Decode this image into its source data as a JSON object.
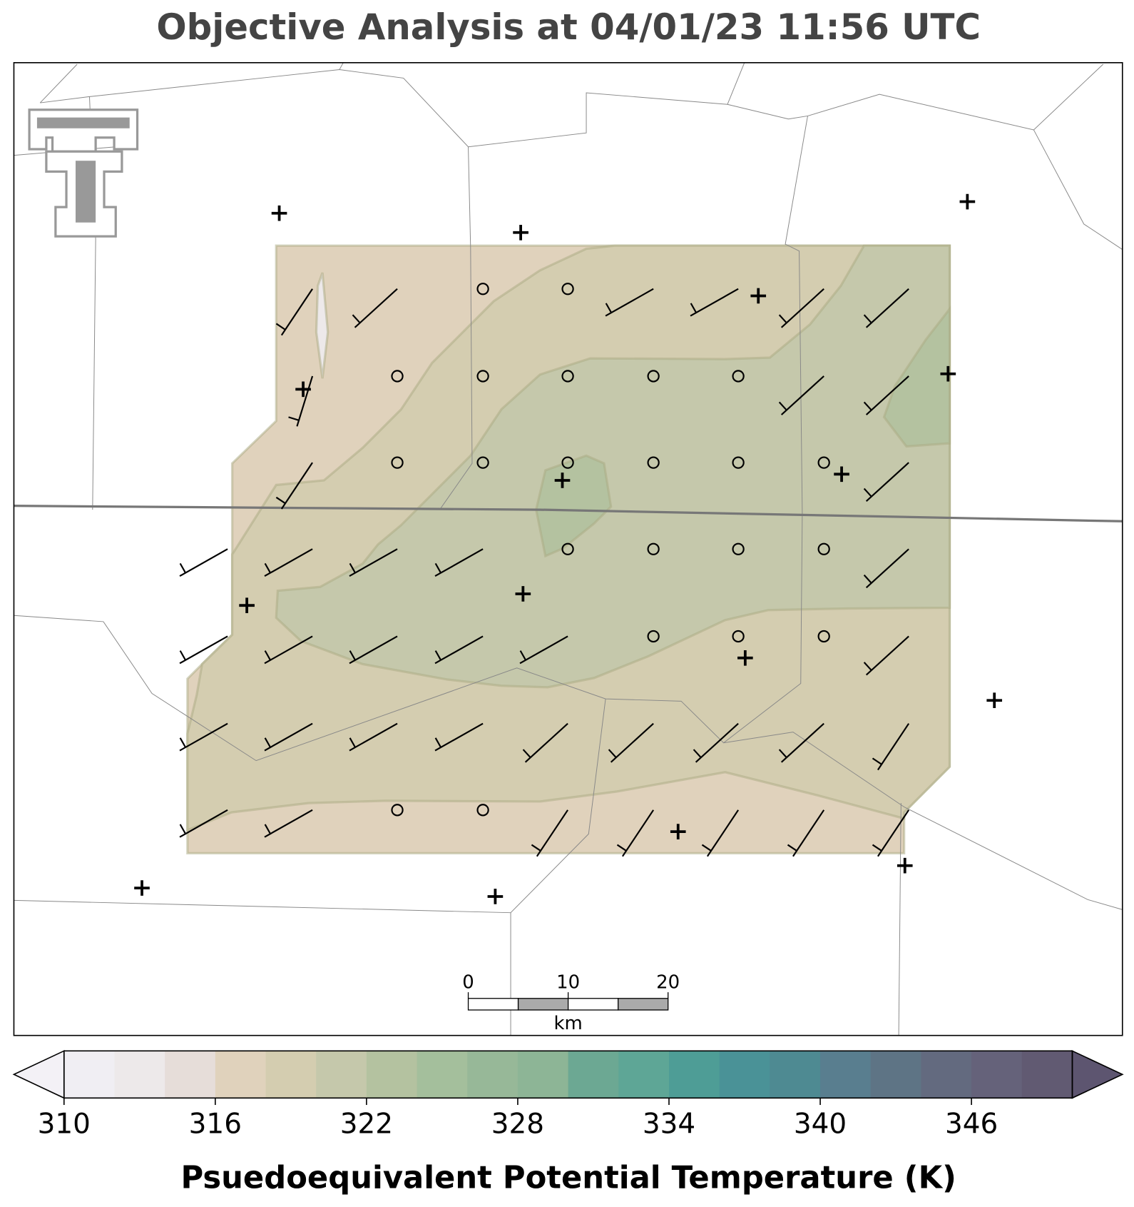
{
  "title": "Objective Analysis at 04/01/23 11:56 UTC",
  "colorbar": {
    "label": "Psuedoequivalent Potential Temperature (K)",
    "clim": [
      310,
      350
    ],
    "ticks": [
      310,
      316,
      322,
      328,
      334,
      340,
      346
    ],
    "extend": "both",
    "under_color": "#f3f1f6",
    "over_color": "#5d5570",
    "colors": [
      "#f0eef3",
      "#ede9ea",
      "#e6ddd9",
      "#e0d2bc",
      "#d4cdb0",
      "#c5c8ab",
      "#b4c2a0",
      "#a4bf9c",
      "#97b898",
      "#8db596",
      "#6ca893",
      "#5ea696",
      "#4e9d96",
      "#4a9297",
      "#4e8a92",
      "#597e8f",
      "#5e7485",
      "#636a7f",
      "#65627a",
      "#615a72"
    ]
  },
  "scale_bar": {
    "ticks": [
      0,
      10,
      20
    ],
    "unit": "km"
  }
}
